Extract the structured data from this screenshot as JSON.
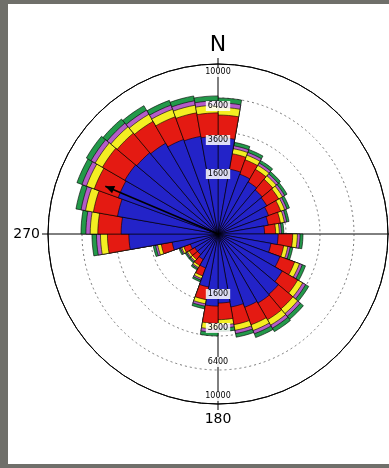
{
  "chart_data": {
    "type": "polar_stacked_bar",
    "x": [
      5,
      15,
      25,
      35,
      45,
      55,
      65,
      75,
      85,
      95,
      105,
      115,
      125,
      135,
      145,
      155,
      165,
      175,
      185,
      195,
      205,
      215,
      225,
      235,
      245,
      255,
      265,
      275,
      285,
      295,
      305,
      315,
      325,
      335,
      345,
      355
    ],
    "series": [
      {
        "color": "#2323c8",
        "values": [
          3200,
          1500,
          1400,
          1250,
          1150,
          1100,
          1000,
          900,
          750,
          1250,
          1000,
          1500,
          1900,
          2150,
          2200,
          2100,
          1900,
          1650,
          1800,
          1000,
          450,
          300,
          250,
          250,
          300,
          750,
          2750,
          3250,
          3600,
          3900,
          4000,
          3900,
          3800,
          3500,
          3400,
          3300
        ]
      },
      {
        "color": "#e41a12",
        "values": [
          1700,
          800,
          760,
          680,
          620,
          600,
          540,
          490,
          400,
          680,
          540,
          800,
          1030,
          1160,
          1190,
          1130,
          1030,
          890,
          970,
          540,
          240,
          160,
          135,
          135,
          160,
          400,
          1480,
          1750,
          1940,
          2100,
          2160,
          2100,
          2050,
          1890,
          1840,
          1780
        ]
      },
      {
        "color": "#f4ee22",
        "values": [
          650,
          300,
          280,
          250,
          230,
          220,
          200,
          180,
          150,
          250,
          200,
          300,
          380,
          430,
          440,
          420,
          380,
          330,
          360,
          200,
          90,
          60,
          50,
          50,
          60,
          150,
          550,
          650,
          720,
          780,
          800,
          780,
          760,
          700,
          680,
          660
        ]
      },
      {
        "color": "#b45cc8",
        "values": [
          400,
          180,
          170,
          150,
          140,
          130,
          120,
          110,
          90,
          150,
          120,
          180,
          230,
          260,
          260,
          250,
          230,
          200,
          220,
          120,
          55,
          35,
          30,
          30,
          35,
          90,
          330,
          390,
          430,
          470,
          480,
          470,
          460,
          420,
          410,
          400
        ]
      },
      {
        "color": "#23994a",
        "values": [
          450,
          220,
          190,
          170,
          160,
          150,
          140,
          120,
          110,
          170,
          140,
          220,
          260,
          300,
          310,
          300,
          260,
          230,
          250,
          140,
          65,
          45,
          35,
          35,
          45,
          110,
          390,
          460,
          510,
          550,
          560,
          550,
          530,
          490,
          470,
          460
        ]
      }
    ],
    "rlim": [
      0,
      10000
    ],
    "rticks": [
      1600,
      3600,
      6400,
      10000
    ],
    "direction_labels": [
      {
        "angle": 0,
        "label": "N"
      },
      {
        "angle": 270,
        "label": "270"
      },
      {
        "angle": 180,
        "label": "180"
      }
    ],
    "mean_direction": 293,
    "grid": true,
    "stacked": true
  }
}
